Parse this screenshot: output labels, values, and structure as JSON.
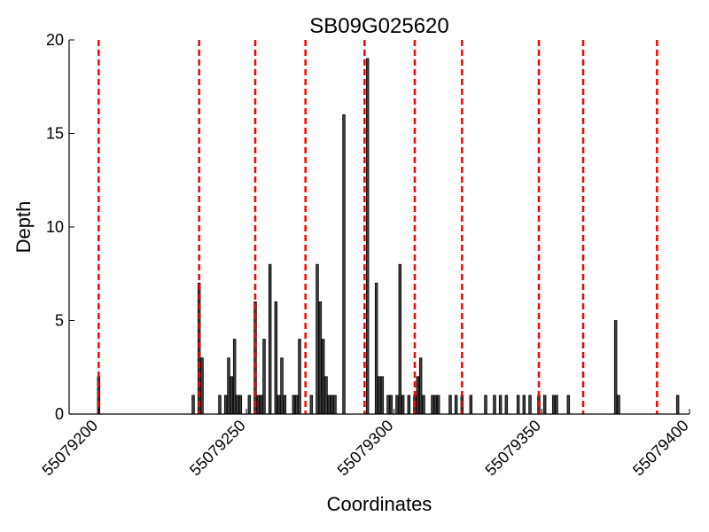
{
  "chart_data": {
    "type": "bar",
    "title": "SB09G025620",
    "xlabel": "Coordinates",
    "ylabel": "Depth",
    "xlim": [
      55079190,
      55079400
    ],
    "ylim": [
      0,
      20
    ],
    "x_ticks": [
      55079200,
      55079250,
      55079300,
      55079350,
      55079400
    ],
    "x_tick_labels": [
      "55079200",
      "55079250",
      "55079300",
      "55079350",
      "55079400"
    ],
    "y_ticks": [
      0,
      5,
      10,
      15,
      20
    ],
    "y_tick_labels": [
      "0",
      "5",
      "10",
      "15",
      "20"
    ],
    "grid": false,
    "bar_color": "#404040",
    "bar_edge_color": "#000000",
    "vline_color": "#ff0000",
    "series": [
      {
        "x": [
          55079200,
          55079232,
          55079234,
          55079235,
          55079241,
          55079243,
          55079244,
          55079245,
          55079246,
          55079247,
          55079248,
          55079251,
          55079253,
          55079254,
          55079255,
          55079256,
          55079258,
          55079260,
          55079261,
          55079262,
          55079263,
          55079266,
          55079267,
          55079268,
          55079272,
          55079274,
          55079275,
          55079276,
          55079277,
          55079278,
          55079279,
          55079280,
          55079283,
          55079291,
          55079294,
          55079295,
          55079296,
          55079298,
          55079299,
          55079301,
          55079302,
          55079303,
          55079305,
          55079307,
          55079308,
          55079309,
          55079310,
          55079313,
          55079314,
          55079315,
          55079319,
          55079321,
          55079323,
          55079326,
          55079331,
          55079334,
          55079336,
          55079338,
          55079342,
          55079344,
          55079346,
          55079349,
          55079351,
          55079354,
          55079355,
          55079359,
          55079375,
          55079376,
          55079396
        ],
        "values": [
          2,
          1,
          7,
          3,
          1,
          1,
          3,
          2,
          4,
          1,
          1,
          1,
          6,
          1,
          1,
          4,
          8,
          6,
          1,
          3,
          1,
          1,
          1,
          4,
          1,
          8,
          6,
          4,
          2,
          1,
          1,
          1,
          16,
          19,
          7,
          2,
          2,
          1,
          1,
          1,
          8,
          1,
          1,
          1,
          2,
          3,
          1,
          1,
          1,
          1,
          1,
          1,
          1,
          1,
          1,
          1,
          1,
          1,
          1,
          1,
          1,
          1,
          1,
          1,
          1,
          1,
          5,
          1,
          1
        ]
      }
    ],
    "vlines": [
      55079200,
      55079234,
      55079253,
      55079270,
      55079290,
      55079307,
      55079323,
      55079349,
      55079364,
      55079389
    ]
  }
}
